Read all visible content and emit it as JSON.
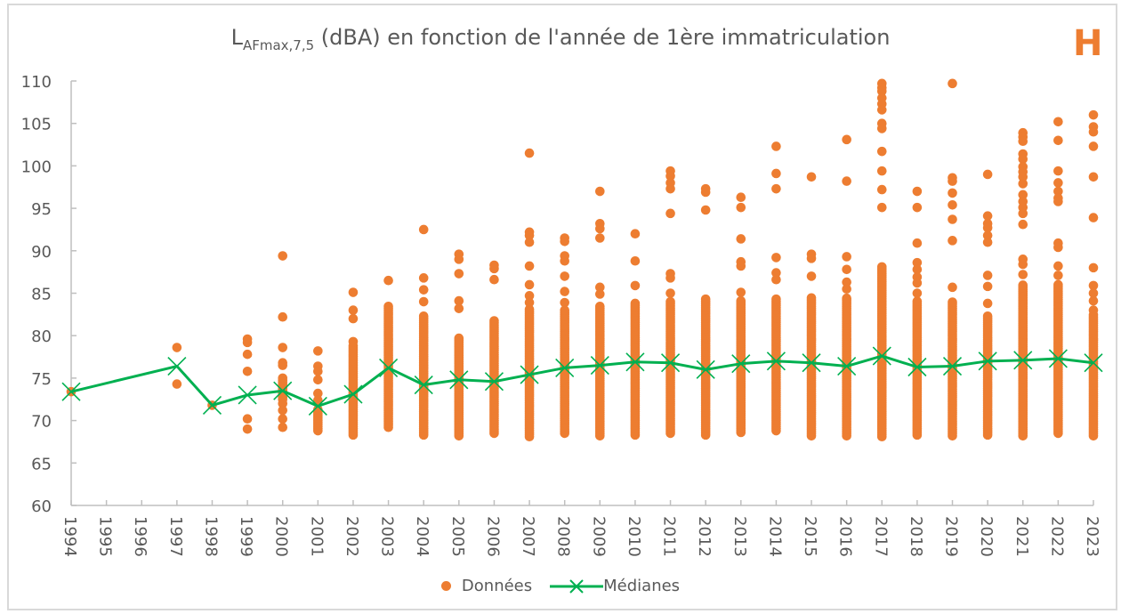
{
  "title": {
    "main": "L",
    "subscript": "AFmax,7,5",
    "rest": " (dBA) en fonction de l'année de 1ère immatriculation"
  },
  "badge": "H",
  "legend": {
    "data_label": "Données",
    "median_label": "Médianes"
  },
  "colors": {
    "data": "#ed7d31",
    "median": "#00b050",
    "axis": "#bfbfbf",
    "text": "#595959"
  },
  "chart_data": {
    "type": "scatter",
    "title": "LAFmax,7,5 (dBA) en fonction de l'année de 1ère immatriculation",
    "xlabel": "",
    "ylabel": "",
    "ylim": [
      60,
      110
    ],
    "yticks": [
      60,
      65,
      70,
      75,
      80,
      85,
      90,
      95,
      100,
      105,
      110
    ],
    "categories": [
      "1994",
      "1995",
      "1996",
      "1997",
      "1998",
      "1999",
      "2000",
      "2001",
      "2002",
      "2003",
      "2004",
      "2005",
      "2006",
      "2007",
      "2008",
      "2009",
      "2010",
      "2011",
      "2012",
      "2013",
      "2014",
      "2015",
      "2016",
      "2017",
      "2018",
      "2019",
      "2020",
      "2021",
      "2022",
      "2023"
    ],
    "legend_position": "bottom",
    "grid": false,
    "series": [
      {
        "name": "Données",
        "kind": "scatter",
        "points_by_year": {
          "1994": {
            "points": [
              73.4
            ],
            "dense": null
          },
          "1997": {
            "points": [
              78.6,
              74.3
            ],
            "dense": null
          },
          "1998": {
            "points": [
              71.8
            ],
            "dense": null
          },
          "1999": {
            "points": [
              79.6,
              79.2,
              77.8,
              75.8,
              70.2,
              69.0
            ],
            "dense": null
          },
          "2000": {
            "points": [
              89.4,
              82.2,
              78.6,
              76.8,
              76.5,
              72.0,
              71.2,
              70.2,
              69.2
            ],
            "dense": [
              72.5,
              75.0
            ]
          },
          "2001": {
            "points": [
              78.2,
              76.4,
              75.8,
              74.8,
              73.2,
              72.4
            ],
            "dense": [
              68.8,
              71.5
            ]
          },
          "2002": {
            "points": [
              85.1,
              83.0,
              82.0,
              79.3
            ],
            "dense": [
              68.3,
              79.0
            ]
          },
          "2003": {
            "points": [
              86.5
            ],
            "dense": [
              69.2,
              83.6
            ]
          },
          "2004": {
            "points": [
              92.5,
              86.8,
              85.4,
              84.0
            ],
            "dense": [
              68.3,
              82.5
            ]
          },
          "2005": {
            "points": [
              89.6,
              89.0,
              87.3,
              84.1,
              83.2
            ],
            "dense": [
              68.2,
              79.8
            ]
          },
          "2006": {
            "points": [
              88.3,
              87.9,
              86.6
            ],
            "dense": [
              68.5,
              81.8
            ]
          },
          "2007": {
            "points": [
              101.5,
              92.2,
              91.8,
              91.0,
              88.2,
              86.0,
              84.7,
              83.9
            ],
            "dense": [
              68.1,
              83.2
            ]
          },
          "2008": {
            "points": [
              91.5,
              91.1,
              89.4,
              88.8,
              87.0,
              85.2,
              83.9
            ],
            "dense": [
              68.5,
              83.0
            ]
          },
          "2009": {
            "points": [
              97.0,
              93.2,
              92.6,
              91.5,
              85.7,
              84.9
            ],
            "dense": [
              68.2,
              83.5
            ]
          },
          "2010": {
            "points": [
              92.0,
              88.8,
              85.9
            ],
            "dense": [
              68.3,
              83.8
            ]
          },
          "2011": {
            "points": [
              99.4,
              98.8,
              98.0,
              97.3,
              94.4,
              87.3,
              86.8,
              85.0
            ],
            "dense": [
              68.5,
              84.0
            ]
          },
          "2012": {
            "points": [
              97.3,
              96.9,
              94.8
            ],
            "dense": [
              68.3,
              84.5
            ]
          },
          "2013": {
            "points": [
              96.3,
              95.1,
              91.4,
              88.7,
              88.2,
              85.1
            ],
            "dense": [
              68.6,
              84.3
            ]
          },
          "2014": {
            "points": [
              102.3,
              99.1,
              97.3,
              89.2,
              87.4,
              86.6
            ],
            "dense": [
              68.8,
              84.5
            ]
          },
          "2015": {
            "points": [
              98.7,
              89.6,
              89.1,
              87.0
            ],
            "dense": [
              68.2,
              84.6
            ]
          },
          "2016": {
            "points": [
              103.1,
              98.2,
              89.3,
              87.8,
              86.3,
              85.5,
              84.4
            ],
            "dense": [
              68.2,
              84.2
            ]
          },
          "2017": {
            "points": [
              109.7,
              109.2,
              108.8,
              108.0,
              107.3,
              106.6,
              105.0,
              104.4,
              101.7,
              99.4,
              97.2,
              95.1
            ],
            "dense": [
              68.1,
              88.3
            ]
          },
          "2018": {
            "points": [
              97.0,
              95.1,
              90.9,
              88.6,
              87.8,
              86.9,
              86.2,
              85.0
            ],
            "dense": [
              68.3,
              84.2
            ]
          },
          "2019": {
            "points": [
              109.7,
              98.6,
              98.2,
              96.8,
              95.4,
              93.7,
              91.2,
              85.7
            ],
            "dense": [
              68.2,
              84.1
            ]
          },
          "2020": {
            "points": [
              99.0,
              94.1,
              93.2,
              92.7,
              91.8,
              91.0,
              87.1,
              85.8,
              83.8
            ],
            "dense": [
              68.3,
              82.5
            ]
          },
          "2021": {
            "points": [
              103.9,
              103.4,
              102.9,
              101.4,
              100.8,
              99.9,
              99.3,
              98.7,
              97.9,
              96.6,
              95.8,
              95.1,
              94.4,
              93.1,
              89.0,
              88.4,
              87.2
            ],
            "dense": [
              68.2,
              86.0
            ]
          },
          "2022": {
            "points": [
              105.2,
              103.0,
              99.4,
              98.0,
              97.0,
              96.2,
              95.8,
              90.9,
              90.4,
              88.2,
              87.1
            ],
            "dense": [
              68.5,
              86.2
            ]
          },
          "2023": {
            "points": [
              106.0,
              104.6,
              104.0,
              102.3,
              98.7,
              93.9,
              88.0,
              85.9,
              85.0,
              84.1,
              83.0
            ],
            "dense": [
              68.2,
              82.5
            ]
          }
        }
      },
      {
        "name": "Médianes",
        "kind": "line",
        "x": [
          "1994",
          "1997",
          "1998",
          "1999",
          "2000",
          "2001",
          "2002",
          "2003",
          "2004",
          "2005",
          "2006",
          "2007",
          "2008",
          "2009",
          "2010",
          "2011",
          "2012",
          "2013",
          "2014",
          "2015",
          "2016",
          "2017",
          "2018",
          "2019",
          "2020",
          "2021",
          "2022",
          "2023"
        ],
        "values": [
          73.4,
          76.4,
          71.8,
          73.0,
          73.5,
          71.7,
          73.1,
          76.2,
          74.2,
          74.8,
          74.6,
          75.4,
          76.2,
          76.5,
          76.9,
          76.8,
          76.0,
          76.7,
          77.0,
          76.8,
          76.4,
          77.6,
          76.3,
          76.4,
          77.0,
          77.1,
          77.3,
          76.8
        ]
      }
    ]
  }
}
